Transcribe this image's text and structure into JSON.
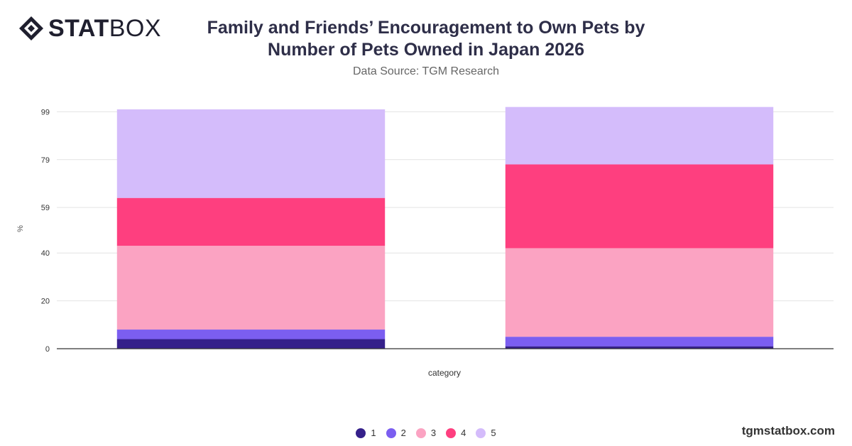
{
  "brand": {
    "logo_bold": "STAT",
    "logo_light": "BOX"
  },
  "header": {
    "title_line1": "Family and Friends’ Encouragement to Own Pets by",
    "title_line2": "Number of Pets Owned in Japan 2026",
    "subtitle": "Data Source: TGM Research"
  },
  "footer": {
    "site": "tgmstatbox.com"
  },
  "colors": {
    "s1": "#35208a",
    "s2": "#7b5ef0",
    "s3": "#fba3c2",
    "s4": "#fe3f7f",
    "s5": "#d4bcfb",
    "grid": "#e3e3e3",
    "axis": "#333333"
  },
  "chart_data": {
    "type": "bar",
    "stacked": true,
    "xlabel": "category",
    "ylabel": "%",
    "yticks": [
      0,
      20,
      40,
      59,
      79,
      99
    ],
    "ylim": [
      0,
      100
    ],
    "grid": true,
    "legend_position": "bottom",
    "categories": [
      "",
      ""
    ],
    "series": [
      {
        "name": "1",
        "values": [
          4,
          1
        ]
      },
      {
        "name": "2",
        "values": [
          4,
          4
        ]
      },
      {
        "name": "3",
        "values": [
          35,
          37
        ]
      },
      {
        "name": "4",
        "values": [
          20,
          35
        ]
      },
      {
        "name": "5",
        "values": [
          37,
          24
        ]
      }
    ]
  }
}
